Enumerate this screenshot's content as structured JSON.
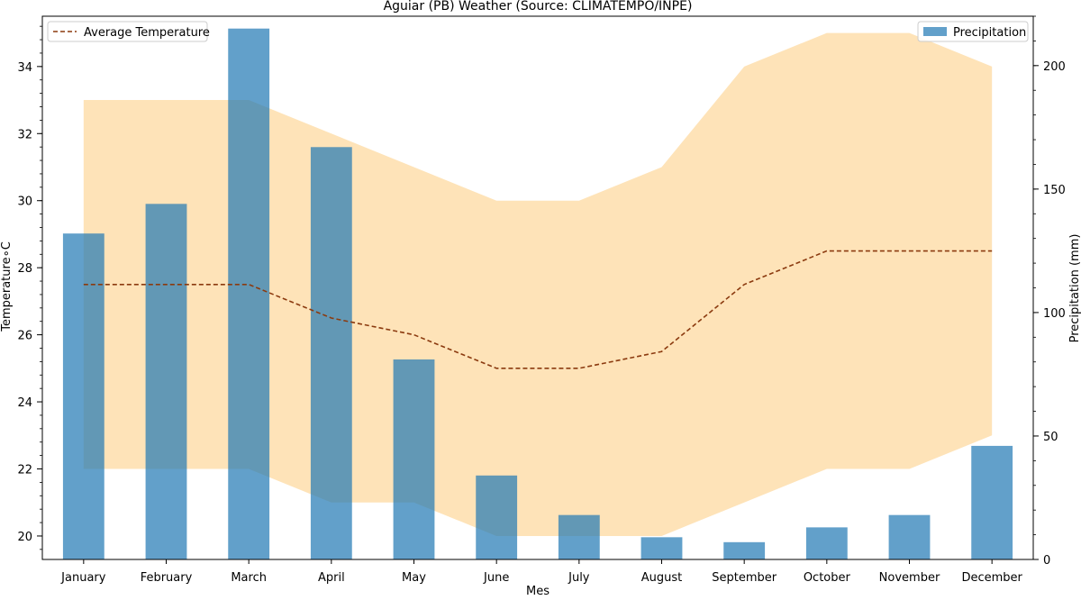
{
  "chart_data": {
    "type": "bar",
    "title": "Aguiar (PB) Weather (Source: CLIMATEMPO/INPE)",
    "xlabel": "Mes",
    "ylabel_left": "Temperature∘C",
    "ylabel_right": "Precipitation (mm)",
    "categories": [
      "January",
      "February",
      "March",
      "April",
      "May",
      "June",
      "July",
      "August",
      "September",
      "October",
      "November",
      "December"
    ],
    "series": [
      {
        "name": "Precipitation",
        "kind": "bar",
        "axis": "right",
        "color": "#1f77b4",
        "values": [
          132,
          144,
          215,
          167,
          81,
          34,
          18,
          9,
          7,
          13,
          18,
          46
        ]
      },
      {
        "name": "Average Temperature",
        "kind": "line",
        "axis": "left",
        "style": "dashed",
        "color": "#8b3a0f",
        "values": [
          27.5,
          27.5,
          27.5,
          26.5,
          26.0,
          25.0,
          25.0,
          25.5,
          27.5,
          28.5,
          28.5,
          28.5
        ]
      }
    ],
    "temperature_band": {
      "color": "#fdd9a0",
      "min": [
        22,
        22,
        22,
        21,
        21,
        20,
        20,
        20,
        21,
        22,
        22,
        23
      ],
      "max": [
        33,
        33,
        33,
        32,
        31,
        30,
        30,
        31,
        34,
        35,
        35,
        34
      ]
    },
    "ylim_left": [
      19.3,
      35.5
    ],
    "yticks_left": [
      20,
      22,
      24,
      26,
      28,
      30,
      32,
      34
    ],
    "ylim_right": [
      0,
      220
    ],
    "yticks_right": [
      0,
      50,
      100,
      150,
      200
    ],
    "legends": {
      "left": {
        "placement": "top-left",
        "label": "Average Temperature"
      },
      "right": {
        "placement": "top-right",
        "label": "Precipitation"
      }
    },
    "grid": false
  }
}
